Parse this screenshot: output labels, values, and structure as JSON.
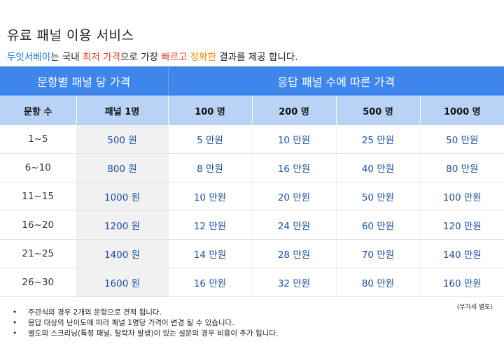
{
  "title": "유료 패널 이용 서비스",
  "subtitle": {
    "brand": "두잇서베이",
    "part1": "는 국내 ",
    "lowest_price": "최저 가격",
    "part2": "으로 가장 ",
    "fast_accurate_1": "빠르고",
    "space": " ",
    "fast_accurate_2": "정확한",
    "part3": " 결과를 제공 합니다."
  },
  "table": {
    "group_headers": [
      "문항별 패널 당 가격",
      "응답 패널 수에 따른 가격"
    ],
    "column_headers": [
      "문항 수",
      "패널 1명",
      "100 명",
      "200 명",
      "500 명",
      "1000 명"
    ],
    "rows": [
      [
        "1~5",
        "500 원",
        "5 만원",
        "10 만원",
        "25 만원",
        "50 만원"
      ],
      [
        "6~10",
        "800 원",
        "8 만원",
        "16 만원",
        "40 만원",
        "80 만원"
      ],
      [
        "11~15",
        "1000 원",
        "10 만원",
        "20 만원",
        "50 만원",
        "100 만원"
      ],
      [
        "16~20",
        "1200 원",
        "12 만원",
        "24 만원",
        "60 만원",
        "120 만원"
      ],
      [
        "21~25",
        "1400 원",
        "14 만원",
        "28 만원",
        "70 만원",
        "140 만원"
      ],
      [
        "26~30",
        "1600 원",
        "16 만원",
        "32 만원",
        "80 만원",
        "160 만원"
      ]
    ]
  },
  "vat_note": "(부가세 별도)",
  "notes": {
    "bullet": "•",
    "items": [
      "주관식의 경우 2개의 문항으로 견적 됩니다.",
      "응답 대상의 난이도에 따라 패널 1명당 가격이 변경 될 수 있습니다.",
      "별도의 스크리닝(특정 패널, 탈락자 발생)이 있는 설문의 경우 비용이 추가 됩니다."
    ]
  },
  "colors": {
    "brand": "#1a73e8",
    "highlight_red": "#e8412c",
    "highlight_orange": "#f08b00",
    "header_blue": "#3f86ec",
    "subheader_blue": "#b9d3f7",
    "price_text": "#1b4f9e"
  }
}
